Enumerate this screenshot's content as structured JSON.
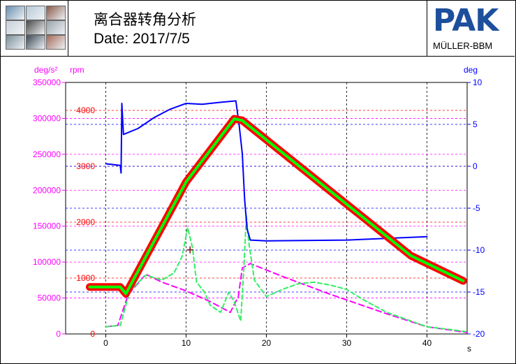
{
  "header": {
    "title": "离合器转角分析",
    "date": "Date: 2017/7/5",
    "logo_text": "PAK",
    "logo_sub": "MÜLLER-BBM",
    "thumbnails": [
      "tire-image",
      "gear-image",
      "engine-image",
      "turbine-image",
      "tool-image",
      "brake-image",
      "headphone-image",
      "plate-image",
      "speaker-image"
    ]
  },
  "chart_data": {
    "type": "line",
    "xlabel": "s",
    "xlim": [
      -5,
      45
    ],
    "x_ticks": [
      0,
      10,
      20,
      30,
      40
    ],
    "y_left_outer": {
      "label": "deg/s²",
      "color": "#ff00ff",
      "lim": [
        0,
        350000
      ],
      "ticks": [
        0,
        50000,
        100000,
        150000,
        200000,
        250000,
        300000,
        350000
      ]
    },
    "y_left_inner": {
      "label": "rpm",
      "color": "#ff0000",
      "lim": [
        0,
        4500
      ],
      "ticks": [
        0,
        1000,
        2000,
        3000,
        4000
      ]
    },
    "y_right": {
      "label": "deg",
      "color": "#0000ff",
      "lim": [
        -20,
        10
      ],
      "ticks": [
        10,
        5,
        0,
        -5,
        -10,
        -15,
        -20
      ]
    },
    "grid": true,
    "marker": {
      "x": 10.5,
      "y": 1505
    },
    "series": [
      {
        "color": "#ff0000",
        "axis": "rpm",
        "points": [
          [
            -2,
            840
          ],
          [
            1.8,
            840
          ],
          [
            2.5,
            720
          ],
          [
            10,
            2720
          ],
          [
            16,
            3850
          ],
          [
            17,
            3820
          ],
          [
            38,
            1400
          ],
          [
            44.5,
            950
          ]
        ]
      },
      {
        "color": "#00ff00",
        "axis": "rpm",
        "points": [
          [
            -2,
            840
          ],
          [
            1.8,
            840
          ],
          [
            2.5,
            720
          ],
          [
            10,
            2720
          ],
          [
            16,
            3850
          ],
          [
            17,
            3820
          ],
          [
            38,
            1400
          ],
          [
            44.5,
            950
          ]
        ]
      },
      {
        "color": "#0000ff",
        "axis": "deg",
        "points": [
          [
            0,
            0.3
          ],
          [
            1.8,
            0.1
          ],
          [
            1.9,
            -0.8
          ],
          [
            2,
            7.5
          ],
          [
            2.2,
            3.8
          ],
          [
            4,
            4.5
          ],
          [
            6,
            5.8
          ],
          [
            8,
            6.8
          ],
          [
            10,
            7.5
          ],
          [
            12,
            7.4
          ],
          [
            14,
            7.6
          ],
          [
            16.2,
            7.8
          ],
          [
            16.6,
            5
          ],
          [
            17,
            1.5
          ],
          [
            17.3,
            -4
          ],
          [
            17.6,
            -7.5
          ],
          [
            18,
            -8.8
          ],
          [
            20,
            -8.9
          ],
          [
            30,
            -8.8
          ],
          [
            40,
            -8.4
          ]
        ]
      },
      {
        "color": "#ff00ff",
        "axis": "deg/s²",
        "points": [
          [
            0,
            10000
          ],
          [
            1.5,
            12000
          ],
          [
            2.8,
            55000
          ],
          [
            5,
            83000
          ],
          [
            7,
            72000
          ],
          [
            10,
            60000
          ],
          [
            13,
            45000
          ],
          [
            15.5,
            30000
          ],
          [
            16.5,
            52000
          ],
          [
            17,
            92000
          ],
          [
            18,
            98000
          ],
          [
            22,
            80000
          ],
          [
            28,
            55000
          ],
          [
            35,
            28000
          ],
          [
            40,
            10000
          ],
          [
            45,
            2000
          ]
        ]
      },
      {
        "color": "#33ee66",
        "axis": "deg/s²",
        "points": [
          [
            0,
            10000
          ],
          [
            1.8,
            12000
          ],
          [
            3,
            60000
          ],
          [
            5,
            82000
          ],
          [
            7,
            75000
          ],
          [
            8.5,
            85000
          ],
          [
            9.5,
            108000
          ],
          [
            10.2,
            148000
          ],
          [
            10.8,
            120000
          ],
          [
            11.3,
            72000
          ],
          [
            12.3,
            58000
          ],
          [
            13,
            40000
          ],
          [
            14.3,
            30000
          ],
          [
            15.3,
            58000
          ],
          [
            16,
            45000
          ],
          [
            16.8,
            18000
          ],
          [
            17.2,
            92000
          ],
          [
            17.5,
            165000
          ],
          [
            17.8,
            128000
          ],
          [
            18.5,
            75000
          ],
          [
            20,
            52000
          ],
          [
            22,
            62000
          ],
          [
            24,
            70000
          ],
          [
            26,
            72000
          ],
          [
            28,
            68000
          ],
          [
            30,
            62000
          ],
          [
            32,
            48000
          ],
          [
            35,
            30000
          ],
          [
            38,
            18000
          ],
          [
            40,
            10000
          ],
          [
            43,
            6000
          ],
          [
            45,
            3000
          ]
        ]
      }
    ]
  }
}
